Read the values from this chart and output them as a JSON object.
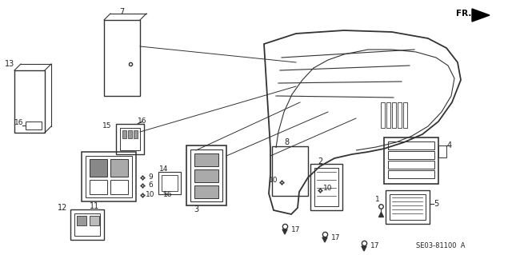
{
  "background_color": "#ffffff",
  "diagram_code": "SE03-81100  A",
  "fr_label": "FR.",
  "line_color": "#333333",
  "text_color": "#222222"
}
